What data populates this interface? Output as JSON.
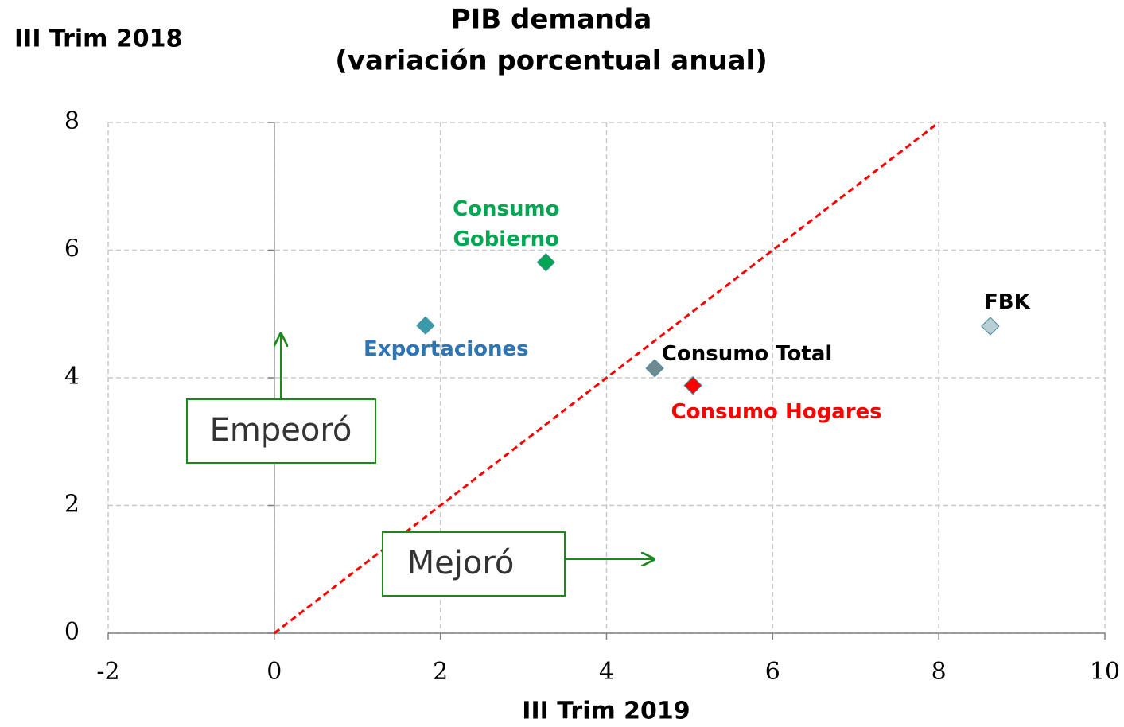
{
  "chart_data": {
    "type": "scatter",
    "title": "PIB demanda",
    "subtitle": "(variación porcentual anual)",
    "y_label": "III Trim 2018",
    "x_label": "III Trim 2019",
    "xlim": [
      -2,
      10
    ],
    "ylim": [
      0,
      8
    ],
    "xticks": [
      -2,
      0,
      2,
      4,
      6,
      8,
      10
    ],
    "yticks": [
      0,
      2,
      4,
      6,
      8
    ],
    "grid": true,
    "series": [
      {
        "name": "Consumo Gobierno",
        "color": "#00a651",
        "label_color": "#00a651",
        "x": [
          3.27
        ],
        "y": [
          5.81
        ]
      },
      {
        "name": "Exportaciones",
        "color": "#3a9aaa",
        "label_color": "#2e75b6",
        "x": [
          1.82
        ],
        "y": [
          4.82
        ]
      },
      {
        "name": "Consumo Total",
        "color": "#6e8a90",
        "label_color": "#000000",
        "x": [
          4.58
        ],
        "y": [
          4.15
        ]
      },
      {
        "name": "Consumo Hogares",
        "color": "#ff0000",
        "label_color": "#ff0000",
        "x": [
          5.04
        ],
        "y": [
          3.88
        ]
      },
      {
        "name": "FBK",
        "color": "#b8cdd4",
        "label_color": "#000000",
        "x": [
          8.62
        ],
        "y": [
          4.81
        ]
      }
    ],
    "reference_line": {
      "x": [
        0,
        8
      ],
      "y": [
        0,
        8
      ],
      "color": "#ff0000"
    },
    "annotations": [
      "Empeoró",
      "Mejoró"
    ]
  }
}
